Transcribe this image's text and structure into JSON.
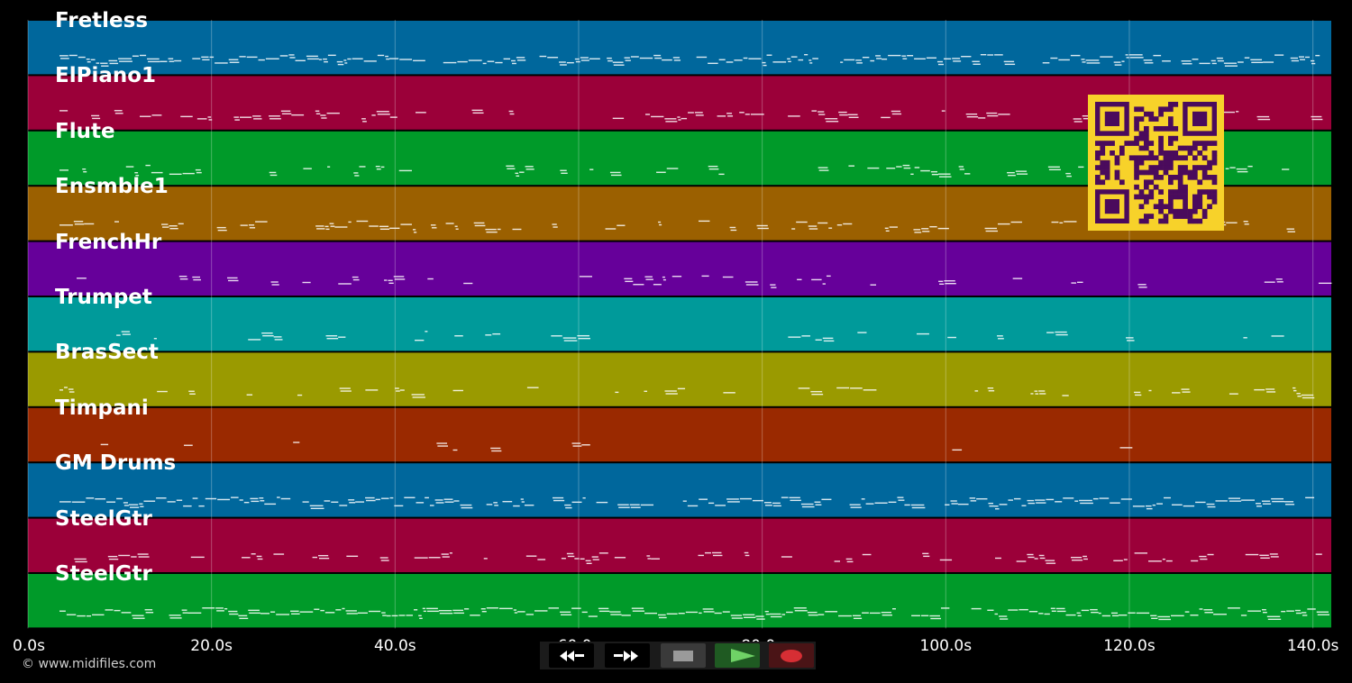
{
  "tracks": [
    {
      "name": "Fretless",
      "color": "#00679c"
    },
    {
      "name": "ElPiano1",
      "color": "#9b0039"
    },
    {
      "name": "Flute",
      "color": "#009a29"
    },
    {
      "name": "Ensmble1",
      "color": "#9b6000"
    },
    {
      "name": "FrenchHr",
      "color": "#66009a"
    },
    {
      "name": "Trumpet",
      "color": "#009a9a"
    },
    {
      "name": "BrasSect",
      "color": "#9a9a00"
    },
    {
      "name": "Timpani",
      "color": "#9a2900"
    },
    {
      "name": "GM Drums",
      "color": "#00679c"
    },
    {
      "name": "SteelGtr",
      "color": "#9b0039"
    },
    {
      "name": "SteelGtr",
      "color": "#009a29"
    }
  ],
  "time_axis": {
    "ticks": [
      {
        "seconds": 0,
        "label": "0.0s"
      },
      {
        "seconds": 20,
        "label": "20.0s"
      },
      {
        "seconds": 40,
        "label": "40.0s"
      },
      {
        "seconds": 60,
        "label": "60.0s"
      },
      {
        "seconds": 80,
        "label": "80.0s"
      },
      {
        "seconds": 100,
        "label": "100.0s"
      },
      {
        "seconds": 120,
        "label": "120.0s"
      },
      {
        "seconds": 140,
        "label": "140.0s"
      }
    ],
    "range": [
      0,
      142
    ]
  },
  "footer": {
    "copyright": "© www.midifiles.com"
  },
  "transport": {
    "rewind_icon": "rewind-icon",
    "fast_forward_icon": "fast-forward-icon",
    "stop_icon": "stop-icon",
    "play_icon": "play-icon",
    "record_icon": "record-icon"
  },
  "qr": {
    "fg": "#4a0b5c",
    "bg": "#f7d22a"
  }
}
